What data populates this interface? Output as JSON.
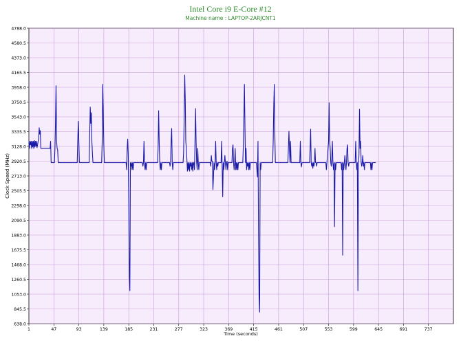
{
  "chart_data": {
    "type": "line",
    "title": "Intel Core i9 E-Core #12",
    "subtitle": "Machine name : LAPTOP-2ARJCNT1",
    "xlabel": "Time (seconds)",
    "ylabel": "Clock Speed (MHz)",
    "xlim": [
      1,
      783
    ],
    "ylim": [
      638.0,
      4788.0
    ],
    "x_ticks": [
      "1",
      "47",
      "93",
      "139",
      "185",
      "231",
      "277",
      "323",
      "369",
      "415",
      "461",
      "507",
      "553",
      "599",
      "645",
      "691",
      "737"
    ],
    "y_ticks": [
      "4788.0",
      "4580.5",
      "4373.0",
      "4165.5",
      "3958.0",
      "3750.5",
      "3543.0",
      "3335.5",
      "3128.0",
      "2920.5",
      "2713.0",
      "2505.5",
      "2298.0",
      "2090.5",
      "1883.0",
      "1675.5",
      "1468.0",
      "1260.5",
      "1053.0",
      "845.5",
      "638.0"
    ],
    "grid": true,
    "colors": {
      "plot_bg": "#f7ecfb",
      "grid": "#c79bd8",
      "line": "#1a1aa8",
      "title": "#2e8b2e"
    },
    "series": [
      {
        "values": [
          [
            1,
            3200
          ],
          [
            2,
            3100
          ],
          [
            3,
            3200
          ],
          [
            4,
            3150
          ],
          [
            5,
            3200
          ],
          [
            6,
            3100
          ],
          [
            7,
            3200
          ],
          [
            8,
            3120
          ],
          [
            9,
            3200
          ],
          [
            10,
            3100
          ],
          [
            11,
            3210
          ],
          [
            12,
            3120
          ],
          [
            13,
            3200
          ],
          [
            14,
            3130
          ],
          [
            15,
            3200
          ],
          [
            16,
            3110
          ],
          [
            17,
            3150
          ],
          [
            18,
            3200
          ],
          [
            19,
            3230
          ],
          [
            20,
            3390
          ],
          [
            21,
            3300
          ],
          [
            22,
            3350
          ],
          [
            23,
            3100
          ],
          [
            24,
            3100
          ],
          [
            25,
            3100
          ],
          [
            28,
            3100
          ],
          [
            31,
            3100
          ],
          [
            40,
            3100
          ],
          [
            41,
            3200
          ],
          [
            42,
            2900
          ],
          [
            48,
            2900
          ],
          [
            49,
            3100
          ],
          [
            50,
            3460
          ],
          [
            51,
            3980
          ],
          [
            52,
            3200
          ],
          [
            53,
            3100
          ],
          [
            54,
            3080
          ],
          [
            55,
            2900
          ],
          [
            90,
            2900
          ],
          [
            91,
            3200
          ],
          [
            92,
            3480
          ],
          [
            93,
            3200
          ],
          [
            94,
            2900
          ],
          [
            112,
            2900
          ],
          [
            113,
            3300
          ],
          [
            114,
            3680
          ],
          [
            115,
            3450
          ],
          [
            116,
            3600
          ],
          [
            117,
            3200
          ],
          [
            118,
            3030
          ],
          [
            119,
            2900
          ],
          [
            135,
            2900
          ],
          [
            136,
            3200
          ],
          [
            137,
            4000
          ],
          [
            138,
            3600
          ],
          [
            139,
            3150
          ],
          [
            140,
            2900
          ],
          [
            180,
            2900
          ],
          [
            181,
            2800
          ],
          [
            182,
            3100
          ],
          [
            183,
            3230
          ],
          [
            184,
            3000
          ],
          [
            185,
            2300
          ],
          [
            186,
            1300
          ],
          [
            187,
            1100
          ],
          [
            188,
            2900
          ],
          [
            189,
            2850
          ],
          [
            190,
            2900
          ],
          [
            191,
            2800
          ],
          [
            192,
            2900
          ],
          [
            193,
            2800
          ],
          [
            194,
            2900
          ],
          [
            210,
            2900
          ],
          [
            211,
            2850
          ],
          [
            212,
            2900
          ],
          [
            213,
            3200
          ],
          [
            214,
            2900
          ],
          [
            215,
            2800
          ],
          [
            216,
            2900
          ],
          [
            217,
            2800
          ],
          [
            218,
            2900
          ],
          [
            238,
            2900
          ],
          [
            239,
            3100
          ],
          [
            240,
            3630
          ],
          [
            241,
            3200
          ],
          [
            242,
            2900
          ],
          [
            243,
            2800
          ],
          [
            244,
            2900
          ],
          [
            245,
            2800
          ],
          [
            246,
            2900
          ],
          [
            260,
            2900
          ],
          [
            261,
            2850
          ],
          [
            262,
            2900
          ],
          [
            263,
            3200
          ],
          [
            264,
            3380
          ],
          [
            265,
            2900
          ],
          [
            266,
            2800
          ],
          [
            267,
            2900
          ],
          [
            285,
            2900
          ],
          [
            286,
            3050
          ],
          [
            287,
            3500
          ],
          [
            288,
            4130
          ],
          [
            289,
            3800
          ],
          [
            290,
            3200
          ],
          [
            291,
            3100
          ],
          [
            292,
            2950
          ],
          [
            293,
            2780
          ],
          [
            294,
            2900
          ],
          [
            295,
            2800
          ],
          [
            296,
            2900
          ],
          [
            297,
            2780
          ],
          [
            298,
            2900
          ],
          [
            299,
            2850
          ],
          [
            300,
            2900
          ],
          [
            301,
            2800
          ],
          [
            302,
            2900
          ],
          [
            303,
            2780
          ],
          [
            304,
            2900
          ],
          [
            305,
            2900
          ],
          [
            306,
            2800
          ],
          [
            307,
            3200
          ],
          [
            308,
            3660
          ],
          [
            309,
            3200
          ],
          [
            310,
            2900
          ],
          [
            311,
            2800
          ],
          [
            312,
            3100
          ],
          [
            313,
            2900
          ],
          [
            314,
            2800
          ],
          [
            315,
            2900
          ],
          [
            335,
            2900
          ],
          [
            336,
            2850
          ],
          [
            337,
            3000
          ],
          [
            338,
            2920
          ],
          [
            339,
            2920
          ],
          [
            340,
            2520
          ],
          [
            341,
            2700
          ],
          [
            342,
            2900
          ],
          [
            343,
            2800
          ],
          [
            344,
            2900
          ],
          [
            345,
            3200
          ],
          [
            346,
            2900
          ],
          [
            347,
            2800
          ],
          [
            348,
            2900
          ],
          [
            349,
            2850
          ],
          [
            350,
            2900
          ],
          [
            355,
            2900
          ],
          [
            356,
            3200
          ],
          [
            357,
            2850
          ],
          [
            358,
            2420
          ],
          [
            359,
            2900
          ],
          [
            360,
            2800
          ],
          [
            361,
            2900
          ],
          [
            362,
            3000
          ],
          [
            363,
            2900
          ],
          [
            364,
            2800
          ],
          [
            365,
            2900
          ],
          [
            366,
            2920
          ],
          [
            367,
            2800
          ],
          [
            368,
            2900
          ],
          [
            375,
            2900
          ],
          [
            376,
            3100
          ],
          [
            377,
            3150
          ],
          [
            378,
            2900
          ],
          [
            379,
            2800
          ],
          [
            380,
            2900
          ],
          [
            381,
            3100
          ],
          [
            382,
            2800
          ],
          [
            383,
            2900
          ],
          [
            384,
            2800
          ],
          [
            385,
            2900
          ],
          [
            386,
            2800
          ],
          [
            387,
            2900
          ],
          [
            395,
            2900
          ],
          [
            396,
            3150
          ],
          [
            397,
            3500
          ],
          [
            398,
            4000
          ],
          [
            399,
            3400
          ],
          [
            400,
            2900
          ],
          [
            401,
            3100
          ],
          [
            402,
            2800
          ],
          [
            403,
            2900
          ],
          [
            404,
            2850
          ],
          [
            405,
            2900
          ],
          [
            406,
            2800
          ],
          [
            407,
            2900
          ],
          [
            408,
            2800
          ],
          [
            409,
            2900
          ],
          [
            420,
            2900
          ],
          [
            421,
            2800
          ],
          [
            422,
            2700
          ],
          [
            423,
            3200
          ],
          [
            424,
            1900
          ],
          [
            425,
            1000
          ],
          [
            426,
            800
          ],
          [
            427,
            2900
          ],
          [
            428,
            2800
          ],
          [
            429,
            2900
          ],
          [
            450,
            2900
          ],
          [
            451,
            3200
          ],
          [
            452,
            3680
          ],
          [
            453,
            4000
          ],
          [
            454,
            3300
          ],
          [
            455,
            2900
          ],
          [
            478,
            2900
          ],
          [
            479,
            3100
          ],
          [
            480,
            3340
          ],
          [
            481,
            3100
          ],
          [
            482,
            2900
          ],
          [
            483,
            3200
          ],
          [
            484,
            2900
          ],
          [
            500,
            2900
          ],
          [
            501,
            3200
          ],
          [
            502,
            2900
          ],
          [
            503,
            2840
          ],
          [
            504,
            2900
          ],
          [
            518,
            2900
          ],
          [
            519,
            3100
          ],
          [
            520,
            3370
          ],
          [
            521,
            2900
          ],
          [
            522,
            2850
          ],
          [
            523,
            2900
          ],
          [
            524,
            2820
          ],
          [
            525,
            2900
          ],
          [
            526,
            2850
          ],
          [
            527,
            2900
          ],
          [
            528,
            3100
          ],
          [
            529,
            2900
          ],
          [
            530,
            2900
          ],
          [
            531,
            2850
          ],
          [
            532,
            2900
          ],
          [
            548,
            2900
          ],
          [
            549,
            2800
          ],
          [
            550,
            2900
          ],
          [
            553,
            3200
          ],
          [
            554,
            3740
          ],
          [
            555,
            3200
          ],
          [
            556,
            3100
          ],
          [
            557,
            2900
          ],
          [
            558,
            2850
          ],
          [
            559,
            2950
          ],
          [
            560,
            3200
          ],
          [
            561,
            2900
          ],
          [
            562,
            2800
          ],
          [
            563,
            2900
          ],
          [
            564,
            2000
          ],
          [
            565,
            2900
          ],
          [
            566,
            2800
          ],
          [
            567,
            2900
          ],
          [
            576,
            2900
          ],
          [
            577,
            2800
          ],
          [
            578,
            2900
          ],
          [
            579,
            1600
          ],
          [
            580,
            2900
          ],
          [
            581,
            2800
          ],
          [
            582,
            2900
          ],
          [
            583,
            3000
          ],
          [
            584,
            2900
          ],
          [
            585,
            2800
          ],
          [
            586,
            2900
          ],
          [
            587,
            3100
          ],
          [
            588,
            3150
          ],
          [
            589,
            2900
          ],
          [
            590,
            2850
          ],
          [
            591,
            2900
          ],
          [
            602,
            2900
          ],
          [
            603,
            3200
          ],
          [
            604,
            2900
          ],
          [
            605,
            2800
          ],
          [
            606,
            2900
          ],
          [
            607,
            1100
          ],
          [
            608,
            2900
          ],
          [
            609,
            3000
          ],
          [
            610,
            3650
          ],
          [
            611,
            3100
          ],
          [
            612,
            3200
          ],
          [
            613,
            2900
          ],
          [
            614,
            2850
          ],
          [
            615,
            2900
          ],
          [
            616,
            3000
          ],
          [
            617,
            2850
          ],
          [
            618,
            2900
          ],
          [
            619,
            2800
          ],
          [
            620,
            2900
          ],
          [
            630,
            2900
          ],
          [
            631,
            2800
          ],
          [
            632,
            2900
          ],
          [
            633,
            2800
          ],
          [
            634,
            2900
          ],
          [
            635,
            2900
          ],
          [
            640,
            2900
          ]
        ]
      }
    ]
  }
}
